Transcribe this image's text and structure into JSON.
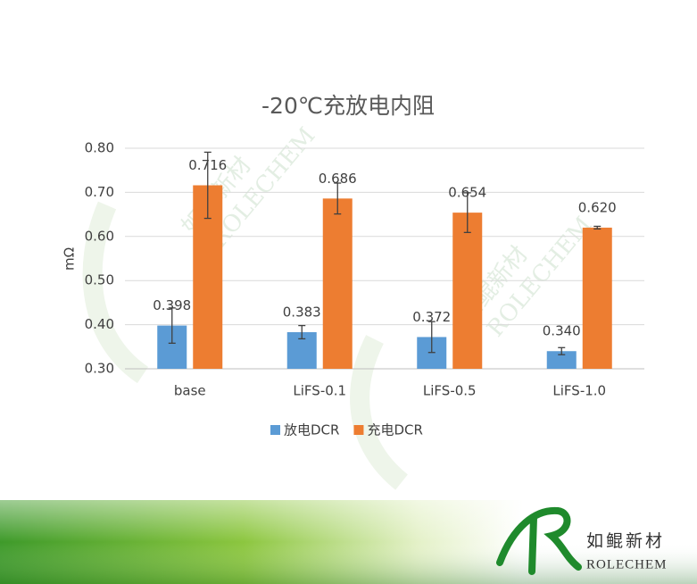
{
  "chart_data": {
    "type": "bar",
    "title": "-20℃充放电内阻",
    "y_label": "mΩ",
    "categories": [
      "base",
      "LiFS-0.1",
      "LiFS-0.5",
      "LiFS-1.0"
    ],
    "series": [
      {
        "name": "放电DCR",
        "color": "#5b9bd5",
        "values": [
          0.398,
          0.383,
          0.372,
          0.34
        ],
        "value_labels": [
          "0.398",
          "0.383",
          "0.372",
          "0.340"
        ],
        "errors": [
          0.04,
          0.015,
          0.035,
          0.008
        ]
      },
      {
        "name": "充电DCR",
        "color": "#ed7d31",
        "values": [
          0.716,
          0.686,
          0.654,
          0.62
        ],
        "value_labels": [
          "0.716",
          "0.686",
          "0.654",
          "0.620"
        ],
        "errors": [
          0.075,
          0.035,
          0.045,
          0.003
        ]
      }
    ],
    "ylim": [
      0.3,
      0.8
    ],
    "yticks": [
      {
        "value": 0.3,
        "label": "0.30"
      },
      {
        "value": 0.4,
        "label": "0.40"
      },
      {
        "value": 0.5,
        "label": "0.50"
      },
      {
        "value": 0.6,
        "label": "0.60"
      },
      {
        "value": 0.7,
        "label": "0.70"
      },
      {
        "value": 0.8,
        "label": "0.80"
      }
    ],
    "grid": true,
    "legend": "bottom"
  },
  "watermark": {
    "cn": "如鲲新材",
    "en": "ROLECHEM"
  },
  "logo": {
    "cn": "如鲲新材",
    "en": "ROLECHEM"
  }
}
